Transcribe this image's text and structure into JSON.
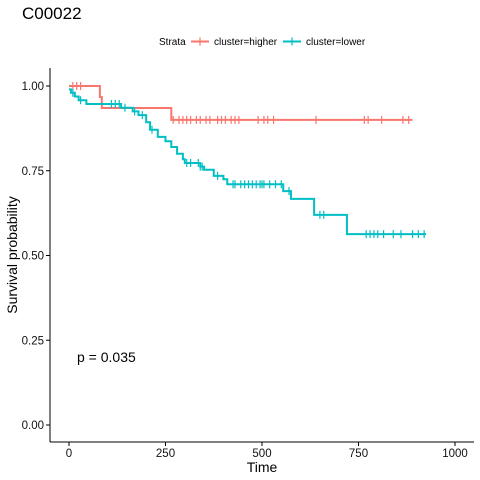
{
  "chart_data": {
    "type": "line",
    "title": "C00022",
    "xlabel": "Time",
    "ylabel": "Survival probability",
    "xlim": [
      0,
      1000
    ],
    "ylim": [
      0,
      1
    ],
    "x_ticks": [
      0,
      250,
      500,
      750,
      1000
    ],
    "y_ticks": [
      0.0,
      0.25,
      0.5,
      0.75,
      1.0
    ],
    "x_tick_labels": [
      "0",
      "250",
      "500",
      "750",
      "1000"
    ],
    "y_tick_labels": [
      "0.00",
      "0.25",
      "0.50",
      "0.75",
      "1.00"
    ],
    "legend": {
      "title": "Strata",
      "position": "top"
    },
    "annotation": "p = 0.035",
    "series": [
      {
        "name": "cluster=higher",
        "color": "#F8766D",
        "steps": [
          [
            0,
            1.0
          ],
          [
            80,
            0.967
          ],
          [
            85,
            0.935
          ],
          [
            265,
            0.9
          ],
          [
            890,
            0.9
          ]
        ],
        "censor_times": [
          10,
          20,
          30,
          270,
          285,
          295,
          305,
          315,
          330,
          340,
          355,
          365,
          385,
          395,
          405,
          420,
          430,
          440,
          490,
          505,
          515,
          530,
          640,
          765,
          775,
          810,
          865,
          880
        ]
      },
      {
        "name": "cluster=lower",
        "color": "#00BFC4",
        "steps": [
          [
            0,
            0.99
          ],
          [
            5,
            0.98
          ],
          [
            15,
            0.969
          ],
          [
            25,
            0.958
          ],
          [
            45,
            0.947
          ],
          [
            135,
            0.936
          ],
          [
            165,
            0.925
          ],
          [
            180,
            0.914
          ],
          [
            200,
            0.893
          ],
          [
            210,
            0.871
          ],
          [
            230,
            0.85
          ],
          [
            250,
            0.837
          ],
          [
            265,
            0.82
          ],
          [
            280,
            0.8
          ],
          [
            295,
            0.784
          ],
          [
            300,
            0.773
          ],
          [
            340,
            0.762
          ],
          [
            350,
            0.753
          ],
          [
            375,
            0.735
          ],
          [
            400,
            0.725
          ],
          [
            410,
            0.71
          ],
          [
            555,
            0.69
          ],
          [
            575,
            0.667
          ],
          [
            635,
            0.62
          ],
          [
            720,
            0.563
          ],
          [
            925,
            0.563
          ]
        ],
        "censor_times": [
          10,
          30,
          110,
          120,
          130,
          145,
          170,
          190,
          215,
          305,
          315,
          335,
          340,
          345,
          385,
          425,
          430,
          445,
          455,
          465,
          475,
          485,
          495,
          500,
          505,
          520,
          535,
          550,
          570,
          650,
          660,
          770,
          780,
          790,
          800,
          815,
          840,
          860,
          890,
          905,
          920
        ]
      }
    ]
  }
}
